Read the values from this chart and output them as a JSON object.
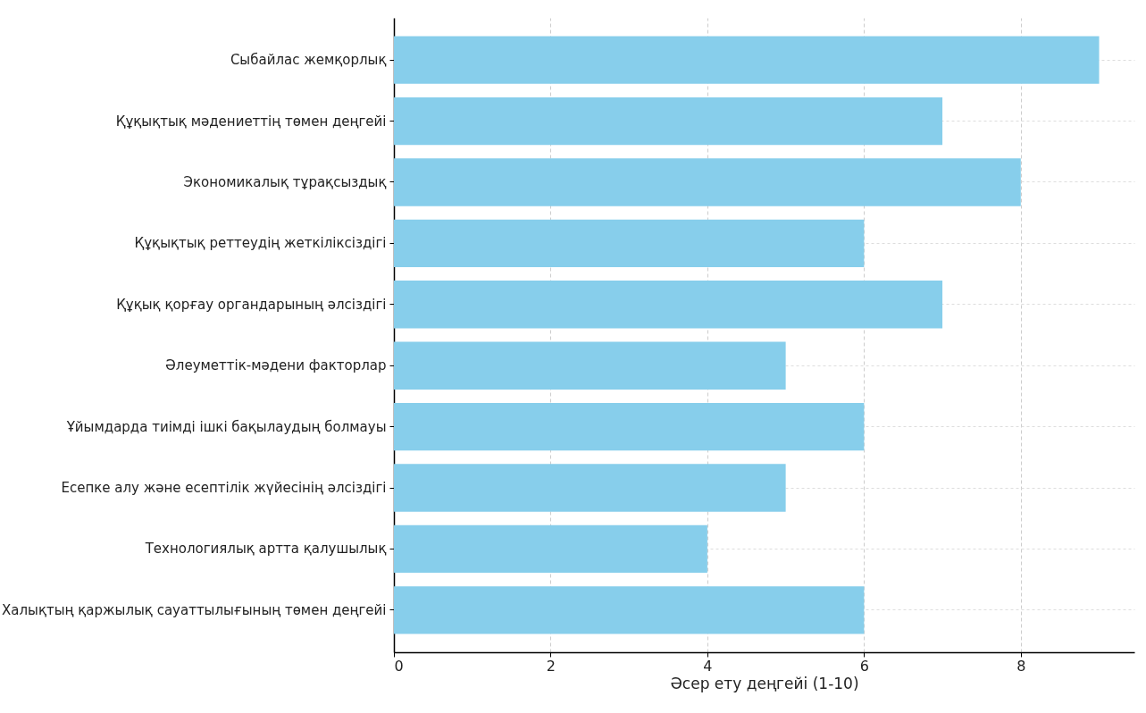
{
  "chart_data": {
    "type": "bar",
    "orientation": "horizontal",
    "xlabel": "Әсер ету деңгейі (1-10)",
    "categories": [
      "Сыбайлас жемқорлық",
      "Құқықтық мәдениеттің төмен деңгейі",
      "Экономикалық тұрақсыздық",
      "Құқықтық реттеудің жеткіліксіздігі",
      "Құқық қорғау органдарының әлсіздігі",
      "Әлеуметтік-мәдени факторлар",
      "Ұйымдарда тиімді ішкі бақылаудың болмауы",
      "Есепке алу және есептілік жүйесінің әлсіздігі",
      "Технологиялық артта қалушылық",
      "Халықтың қаржылық сауаттылығының төмен деңгейі"
    ],
    "values": [
      9,
      7,
      8,
      6,
      7,
      5,
      6,
      5,
      4,
      6
    ],
    "color": "#87ceeb",
    "xlim": [
      0,
      9.45
    ],
    "xticks": [
      0,
      2,
      4,
      6,
      8
    ],
    "grid": true
  }
}
